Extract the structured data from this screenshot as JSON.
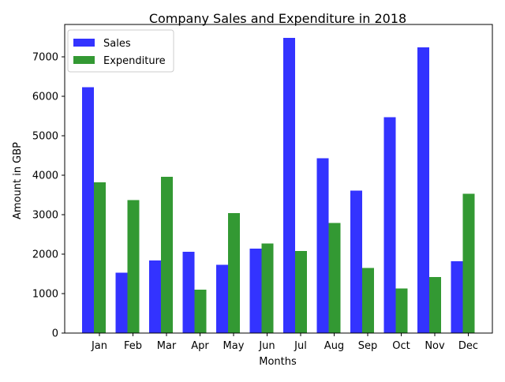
{
  "chart_data": {
    "type": "bar",
    "title": "Company Sales and Expenditure in 2018",
    "xlabel": "Months",
    "ylabel": "Amount in GBP",
    "categories": [
      "Jan",
      "Feb",
      "Mar",
      "Apr",
      "May",
      "Jun",
      "Jul",
      "Aug",
      "Sep",
      "Oct",
      "Nov",
      "Dec"
    ],
    "series": [
      {
        "name": "Sales",
        "color": "#3333ff",
        "values": [
          6230,
          1530,
          1840,
          2060,
          1730,
          2140,
          7480,
          4430,
          3610,
          5470,
          7240,
          1820
        ]
      },
      {
        "name": "Expenditure",
        "color": "#339933",
        "values": [
          3820,
          3370,
          3960,
          1100,
          3040,
          2270,
          2080,
          2790,
          1650,
          1130,
          1420,
          3530
        ]
      }
    ],
    "ylim": [
      0,
      7820
    ],
    "yticks": [
      0,
      1000,
      2000,
      3000,
      4000,
      5000,
      6000,
      7000
    ],
    "legend_position": "top-left",
    "grid": false
  }
}
